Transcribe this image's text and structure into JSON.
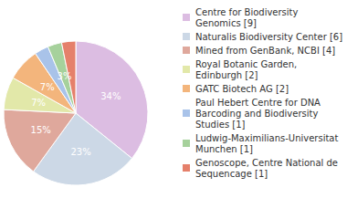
{
  "chart_data": {
    "type": "pie",
    "categories": [
      "Centre for Biodiversity Genomics [9]",
      "Naturalis Biodiversity Center [6]",
      "Mined from GenBank, NCBI [4]",
      "Royal Botanic Garden, Edinburgh [2]",
      "GATC Biotech AG [2]",
      "Paul Hebert Centre for DNA Barcoding and Biodiversity Studies [1]",
      "Ludwig-Maximilians-Universitat Munchen [1]",
      "Genoscope, Centre National de Sequencage [1]"
    ],
    "values": [
      34,
      23,
      15,
      7,
      7,
      3,
      3,
      3
    ],
    "value_labels": [
      "34%",
      "23%",
      "15%",
      "7%",
      "7%",
      "3%",
      "3%",
      "3%"
    ],
    "colors": [
      "#dcbde2",
      "#ccd8e6",
      "#dfa89c",
      "#e2e8a9",
      "#f3b57c",
      "#a9c3e9",
      "#a6d19c",
      "#e5806b"
    ],
    "data_labels": true,
    "legend": "right"
  }
}
